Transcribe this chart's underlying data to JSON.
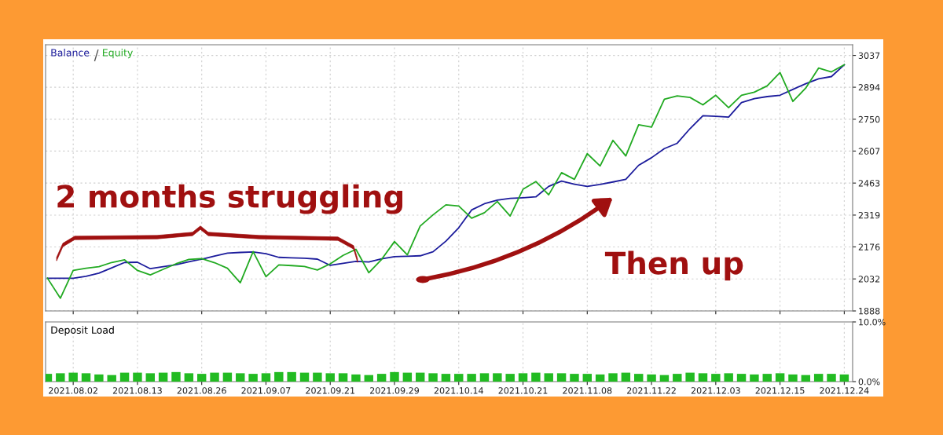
{
  "chart_data": [
    {
      "type": "line",
      "legend": "top left",
      "grid": true,
      "line_style": "solid",
      "tick_labels": "y",
      "categories": [
        null,
        null,
        "2021.08.02",
        null,
        null,
        null,
        null,
        "2021.08.13",
        null,
        null,
        null,
        null,
        "2021.08.26",
        null,
        null,
        null,
        null,
        "2021.09.07",
        null,
        null,
        null,
        null,
        "2021.09.21",
        null,
        null,
        null,
        null,
        "2021.09.29",
        null,
        null,
        null,
        null,
        "2021.10.14",
        null,
        null,
        null,
        null,
        "2021.10.21",
        null,
        null,
        null,
        null,
        "2021.11.08",
        null,
        null,
        null,
        null,
        "2021.11.22",
        null,
        null,
        null,
        null,
        "2021.12.03",
        null,
        null,
        null,
        null,
        "2021.12.15",
        null,
        null,
        null,
        null,
        "2021.12.24"
      ],
      "ylim": [
        1888,
        3085
      ],
      "yticks": [
        1888,
        2032,
        2176,
        2319,
        2463,
        2607,
        2750,
        2894,
        3037
      ],
      "annotations": [
        "2 months struggling",
        "Then up"
      ],
      "series": [
        {
          "name": "Balance",
          "color": "#1c1c9c",
          "values": [
            2035,
            2035,
            2035,
            2044,
            2058,
            2082,
            2106,
            2107,
            2078,
            2087,
            2096,
            2109,
            2121,
            2135,
            2148,
            2151,
            2153,
            2145,
            2129,
            2127,
            2125,
            2121,
            2093,
            2102,
            2111,
            2108,
            2122,
            2132,
            2134,
            2136,
            2154,
            2202,
            2262,
            2342,
            2370,
            2386,
            2394,
            2397,
            2401,
            2448,
            2472,
            2458,
            2448,
            2457,
            2468,
            2480,
            2543,
            2577,
            2618,
            2642,
            2708,
            2766,
            2763,
            2760,
            2825,
            2843,
            2852,
            2858,
            2884,
            2910,
            2932,
            2942,
            2995
          ]
        },
        {
          "name": "Equity",
          "color": "#22aa22",
          "values": [
            2035,
            1945,
            2070,
            2080,
            2087,
            2106,
            2118,
            2070,
            2050,
            2075,
            2100,
            2120,
            2123,
            2105,
            2080,
            2015,
            2155,
            2042,
            2095,
            2092,
            2088,
            2072,
            2100,
            2138,
            2165,
            2060,
            2120,
            2200,
            2140,
            2270,
            2320,
            2365,
            2360,
            2305,
            2330,
            2380,
            2315,
            2435,
            2470,
            2410,
            2510,
            2480,
            2595,
            2540,
            2655,
            2585,
            2725,
            2715,
            2840,
            2855,
            2848,
            2815,
            2858,
            2802,
            2858,
            2872,
            2900,
            2960,
            2830,
            2890,
            2980,
            2963,
            2995
          ]
        }
      ]
    },
    {
      "type": "bar",
      "title": "Deposit Load",
      "grid": "x",
      "categories": [
        null,
        null,
        "2021.08.02",
        null,
        null,
        null,
        null,
        "2021.08.13",
        null,
        null,
        null,
        null,
        "2021.08.26",
        null,
        null,
        null,
        null,
        "2021.09.07",
        null,
        null,
        null,
        null,
        "2021.09.21",
        null,
        null,
        null,
        null,
        "2021.09.29",
        null,
        null,
        null,
        null,
        "2021.10.14",
        null,
        null,
        null,
        null,
        "2021.10.21",
        null,
        null,
        null,
        null,
        "2021.11.08",
        null,
        null,
        null,
        null,
        "2021.11.22",
        null,
        null,
        null,
        null,
        "2021.12.03",
        null,
        null,
        null,
        null,
        "2021.12.15",
        null,
        null,
        null,
        null,
        "2021.12.24"
      ],
      "ylim": [
        0,
        10
      ],
      "yticks": [
        {
          "value": 0,
          "label": "0.0%"
        },
        {
          "value": 10,
          "label": "10.0%"
        }
      ],
      "series": [
        {
          "color": "#22bb22",
          "values": [
            1.3,
            1.4,
            1.5,
            1.4,
            1.2,
            1.1,
            1.5,
            1.5,
            1.4,
            1.5,
            1.6,
            1.4,
            1.3,
            1.5,
            1.5,
            1.4,
            1.3,
            1.4,
            1.6,
            1.6,
            1.5,
            1.5,
            1.4,
            1.4,
            1.2,
            1.1,
            1.3,
            1.6,
            1.5,
            1.5,
            1.4,
            1.3,
            1.3,
            1.3,
            1.4,
            1.4,
            1.3,
            1.4,
            1.5,
            1.4,
            1.4,
            1.3,
            1.3,
            1.2,
            1.4,
            1.5,
            1.3,
            1.2,
            1.1,
            1.3,
            1.5,
            1.4,
            1.3,
            1.4,
            1.3,
            1.2,
            1.3,
            1.4,
            1.2,
            1.1,
            1.3,
            1.3,
            1.2
          ]
        }
      ]
    }
  ]
}
